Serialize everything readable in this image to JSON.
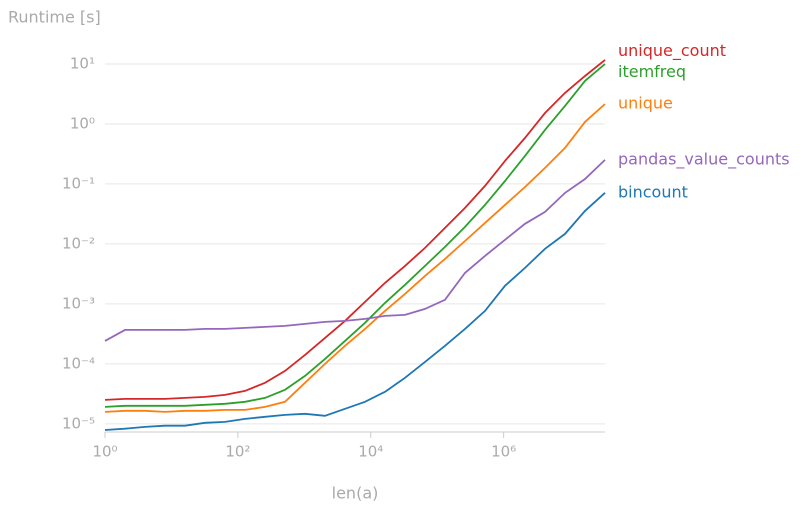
{
  "chart_data": {
    "type": "line",
    "xlabel": "len(a)",
    "ylabel": "Runtime [s]",
    "xlog": true,
    "ylog": true,
    "grid": true,
    "x": [
      1,
      2,
      4,
      8,
      16,
      32,
      64,
      128,
      256,
      512,
      1024,
      2048,
      4096,
      8192,
      16384,
      32768,
      65536,
      131072,
      262144,
      524288,
      1048576,
      2097152,
      4194304,
      8388608,
      16777216,
      33554432
    ],
    "xlim": [
      1,
      33554432
    ],
    "ylim": [
      7.9e-06,
      20.7
    ],
    "xticks": [
      {
        "value": 1,
        "label": "10⁰"
      },
      {
        "value": 100,
        "label": "10²"
      },
      {
        "value": 10000,
        "label": "10⁴"
      },
      {
        "value": 1000000,
        "label": "10⁶"
      }
    ],
    "yticks": [
      {
        "value": 1e-05,
        "label": "10⁻⁵"
      },
      {
        "value": 0.0001,
        "label": "10⁻⁴"
      },
      {
        "value": 0.001,
        "label": "10⁻³"
      },
      {
        "value": 0.01,
        "label": "10⁻²"
      },
      {
        "value": 0.1,
        "label": "10⁻¹"
      },
      {
        "value": 1,
        "label": "10⁰"
      },
      {
        "value": 10,
        "label": "10¹"
      }
    ],
    "series": [
      {
        "name": "unique_count",
        "color": "#d62728",
        "values": [
          2.51e-05,
          2.61e-05,
          2.61e-05,
          2.61e-05,
          2.71e-05,
          2.82e-05,
          3.04e-05,
          3.55e-05,
          4.83e-05,
          7.64e-05,
          0.000141,
          0.000271,
          0.000521,
          0.00108,
          0.00224,
          0.0043,
          0.00858,
          0.0185,
          0.0398,
          0.0926,
          0.242,
          0.585,
          1.52,
          3.29,
          6.3,
          11.7
        ]
      },
      {
        "name": "itemfreq",
        "color": "#2ca02c",
        "values": [
          1.92e-05,
          2e-05,
          2e-05,
          2e-05,
          2e-05,
          2.08e-05,
          2.16e-05,
          2.33e-05,
          2.71e-05,
          3.69e-05,
          6.3e-05,
          0.000121,
          0.000242,
          0.000483,
          0.00104,
          0.00208,
          0.0043,
          0.0089,
          0.0192,
          0.0447,
          0.112,
          0.293,
          0.794,
          2.0,
          5.21,
          10
        ]
      },
      {
        "name": "unique",
        "color": "#ff7f0e",
        "values": [
          1.58e-05,
          1.65e-05,
          1.65e-05,
          1.58e-05,
          1.65e-05,
          1.65e-05,
          1.71e-05,
          1.71e-05,
          1.92e-05,
          2.33e-05,
          4.83e-05,
          0.0001,
          0.0002,
          0.000383,
          0.000764,
          0.00147,
          0.00293,
          0.00562,
          0.0112,
          0.0224,
          0.0447,
          0.089,
          0.185,
          0.398,
          1.08,
          2.15
        ]
      },
      {
        "name": "pandas_value_counts",
        "color": "#9467bd",
        "values": [
          0.000242,
          0.000369,
          0.000369,
          0.000369,
          0.000369,
          0.000383,
          0.000383,
          0.000398,
          0.000414,
          0.00043,
          0.000464,
          0.000501,
          0.000521,
          0.000562,
          0.000631,
          0.000656,
          0.000826,
          0.00117,
          0.00329,
          0.00631,
          0.0117,
          0.0216,
          0.0342,
          0.0708,
          0.121,
          0.251
        ]
      },
      {
        "name": "bincount",
        "color": "#1f77b4",
        "values": [
          7.9e-06,
          8.3e-06,
          8.9e-06,
          9.3e-06,
          9.3e-06,
          1.04e-05,
          1.08e-05,
          1.21e-05,
          1.31e-05,
          1.41e-05,
          1.47e-05,
          1.36e-05,
          1.78e-05,
          2.33e-05,
          3.42e-05,
          5.85e-05,
          0.000108,
          0.0002,
          0.000383,
          0.000764,
          0.002,
          0.00398,
          0.0083,
          0.0147,
          0.0355,
          0.071
        ]
      }
    ]
  }
}
